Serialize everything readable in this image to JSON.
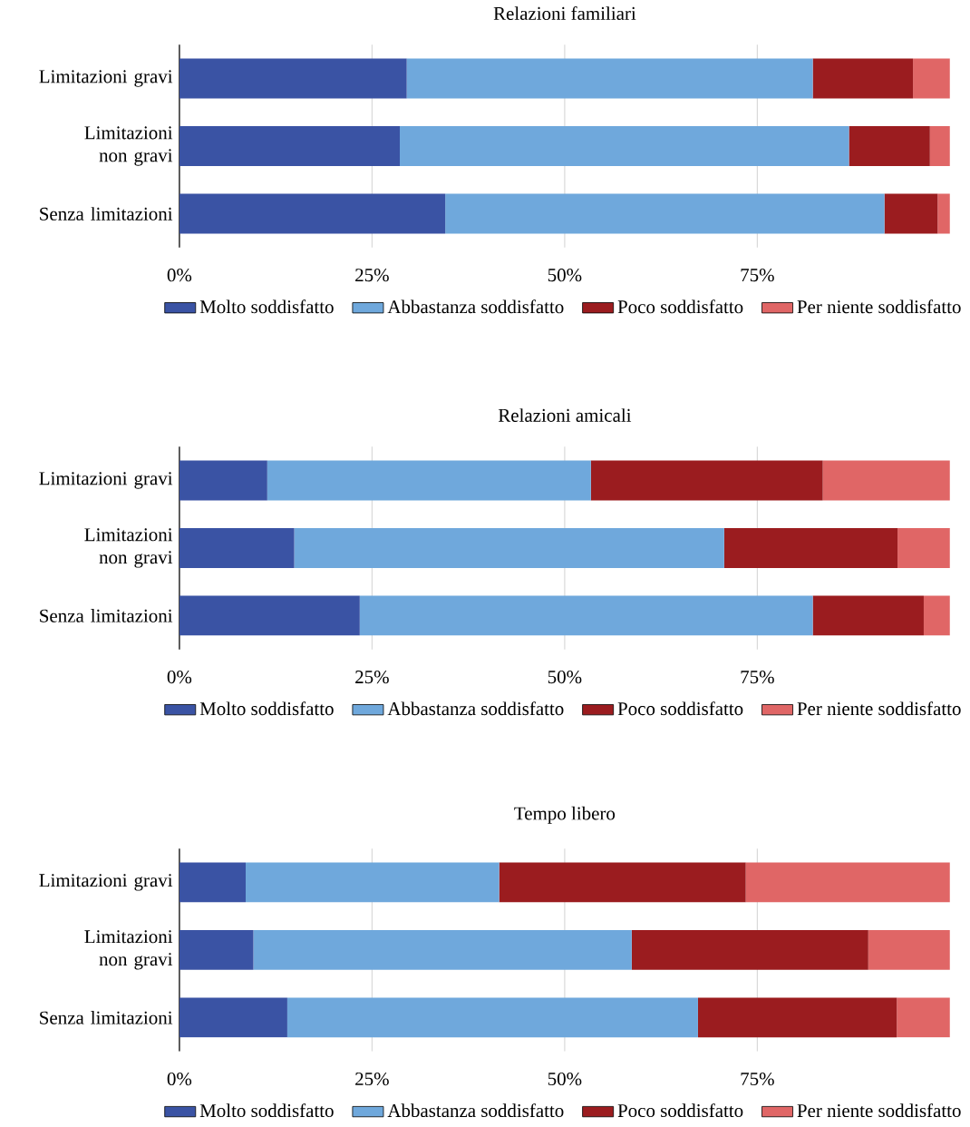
{
  "chart_data": [
    {
      "type": "bar",
      "orientation": "horizontal",
      "stacked": true,
      "title": "Relazioni familiari",
      "categories": [
        "Limitazioni gravi",
        "Limitazioni non gravi",
        "Senza limitazioni"
      ],
      "series": [
        {
          "name": "Molto soddisfatto",
          "color": "#3a53a4",
          "values": [
            29.5,
            28.6,
            34.5
          ]
        },
        {
          "name": "Abbastanza soddisfatto",
          "color": "#6fa8dc",
          "values": [
            52.7,
            58.3,
            57.0
          ]
        },
        {
          "name": "Poco soddisfatto",
          "color": "#9b1c1f",
          "values": [
            13.0,
            10.5,
            6.9
          ]
        },
        {
          "name": "Per niente soddisfatto",
          "color": "#e06666",
          "values": [
            4.8,
            2.6,
            1.6
          ]
        }
      ],
      "xlim": [
        0,
        100
      ],
      "xticks": [
        {
          "value": 0,
          "label": "0%"
        },
        {
          "value": 25,
          "label": "25%"
        },
        {
          "value": 50,
          "label": "50%"
        },
        {
          "value": 75,
          "label": "75%"
        }
      ],
      "grid": "x",
      "legend": "bottom"
    },
    {
      "type": "bar",
      "orientation": "horizontal",
      "stacked": true,
      "title": "Relazioni amicali",
      "categories": [
        "Limitazioni gravi",
        "Limitazioni non gravi",
        "Senza limitazioni"
      ],
      "series": [
        {
          "name": "Molto soddisfatto",
          "color": "#3a53a4",
          "values": [
            11.4,
            14.9,
            23.4
          ]
        },
        {
          "name": "Abbastanza soddisfatto",
          "color": "#6fa8dc",
          "values": [
            42.0,
            55.8,
            58.8
          ]
        },
        {
          "name": "Poco soddisfatto",
          "color": "#9b1c1f",
          "values": [
            30.1,
            22.5,
            14.4
          ]
        },
        {
          "name": "Per niente soddisfatto",
          "color": "#e06666",
          "values": [
            16.5,
            6.8,
            3.4
          ]
        }
      ],
      "xlim": [
        0,
        100
      ],
      "xticks": [
        {
          "value": 0,
          "label": "0%"
        },
        {
          "value": 25,
          "label": "25%"
        },
        {
          "value": 50,
          "label": "50%"
        },
        {
          "value": 75,
          "label": "75%"
        }
      ],
      "grid": "x",
      "legend": "bottom"
    },
    {
      "type": "bar",
      "orientation": "horizontal",
      "stacked": true,
      "title": "Tempo libero",
      "categories": [
        "Limitazioni gravi",
        "Limitazioni non gravi",
        "Senza limitazioni"
      ],
      "series": [
        {
          "name": "Molto soddisfatto",
          "color": "#3a53a4",
          "values": [
            8.6,
            9.6,
            14.0
          ]
        },
        {
          "name": "Abbastanza soddisfatto",
          "color": "#6fa8dc",
          "values": [
            32.9,
            49.1,
            53.3
          ]
        },
        {
          "name": "Poco soddisfatto",
          "color": "#9b1c1f",
          "values": [
            32.0,
            30.7,
            25.8
          ]
        },
        {
          "name": "Per niente soddisfatto",
          "color": "#e06666",
          "values": [
            26.5,
            10.6,
            6.9
          ]
        }
      ],
      "xlim": [
        0,
        100
      ],
      "xticks": [
        {
          "value": 0,
          "label": "0%"
        },
        {
          "value": 25,
          "label": "25%"
        },
        {
          "value": 50,
          "label": "50%"
        },
        {
          "value": 75,
          "label": "75%"
        }
      ],
      "grid": "x",
      "legend": "bottom"
    }
  ]
}
